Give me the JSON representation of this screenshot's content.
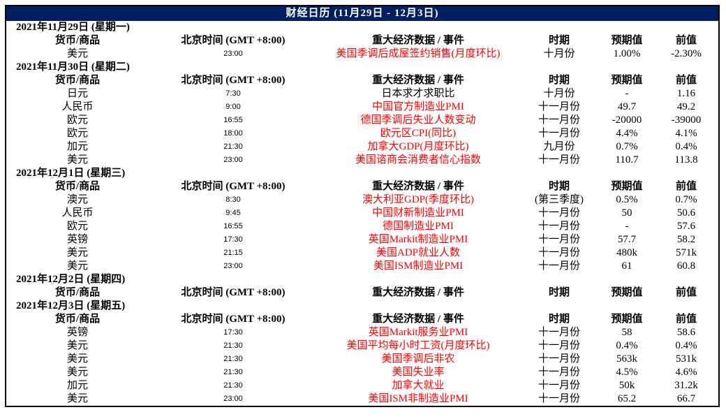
{
  "title": "财经日历 (11月29日 - 12月3日)",
  "colors": {
    "title_bar_bg": "#001f60",
    "title_text": "#ffffff",
    "event_highlight_red": "#fe0000",
    "body_text": "#000000",
    "border": "#000000",
    "background": "#ffffff"
  },
  "columns": [
    "货币/商品",
    "北京时间 (GMT +8:00)",
    "重大经济数据 / 事件",
    "时期",
    "预期值",
    "前值"
  ],
  "sections": [
    {
      "date": "2021年11月29日 (星期一)",
      "rows": [
        {
          "currency": "美元",
          "time": "23:00",
          "event": "美国季调后成屋签约销售(月度环比)",
          "event_color": "red",
          "period": "十月份",
          "forecast": "1.00%",
          "previous": "-2.30%"
        }
      ]
    },
    {
      "date": "2021年11月30日 (星期二)",
      "rows": [
        {
          "currency": "日元",
          "time": "7:30",
          "event": "日本求才求职比",
          "event_color": "black",
          "period": "十月份",
          "forecast": "-",
          "previous": "1.16"
        },
        {
          "currency": "人民币",
          "time": "9:00",
          "event": "中国官方制造业PMI",
          "event_color": "red",
          "period": "十一月份",
          "forecast": "49.7",
          "previous": "49.2"
        },
        {
          "currency": "欧元",
          "time": "16:55",
          "event": "德国季调后失业人数变动",
          "event_color": "red",
          "period": "十一月份",
          "forecast": "-20000",
          "previous": "-39000"
        },
        {
          "currency": "欧元",
          "time": "18:00",
          "event": "欧元区CPI(同比)",
          "event_color": "red",
          "period": "十一月份",
          "forecast": "4.4%",
          "previous": "4.1%"
        },
        {
          "currency": "加元",
          "time": "21:30",
          "event": "加拿大GDP(月度环比)",
          "event_color": "red",
          "period": "九月份",
          "forecast": "0.7%",
          "previous": "0.4%"
        },
        {
          "currency": "美元",
          "time": "23:00",
          "event": "美国谘商会消费者信心指数",
          "event_color": "red",
          "period": "十一月份",
          "forecast": "110.7",
          "previous": "113.8"
        }
      ]
    },
    {
      "date": "2021年12月1日 (星期三)",
      "rows": [
        {
          "currency": "澳元",
          "time": "8:30",
          "event": "澳大利亚GDP(季度环比)",
          "event_color": "red",
          "period": "(第三季度)",
          "forecast": "0.5%",
          "previous": "0.7%"
        },
        {
          "currency": "人民币",
          "time": "9:45",
          "event": "中国财新制造业PMI",
          "event_color": "red",
          "period": "十一月份",
          "forecast": "50",
          "previous": "50.6"
        },
        {
          "currency": "欧元",
          "time": "16:55",
          "event": "德国制造业PMI",
          "event_color": "red",
          "period": "十一月份",
          "forecast": "-",
          "previous": "57.6"
        },
        {
          "currency": "英镑",
          "time": "17:30",
          "event": "英国Markit制造业PMI",
          "event_color": "red",
          "period": "十一月份",
          "forecast": "57.7",
          "previous": "58.2"
        },
        {
          "currency": "美元",
          "time": "21:15",
          "event": "美国ADP就业人数",
          "event_color": "red",
          "period": "十一月份",
          "forecast": "480k",
          "previous": "571k"
        },
        {
          "currency": "美元",
          "time": "23:00",
          "event": "美国ISM制造业PMI",
          "event_color": "red",
          "period": "十一月份",
          "forecast": "61",
          "previous": "60.8"
        }
      ]
    },
    {
      "date": "2021年12月2日 (星期四)",
      "rows": []
    },
    {
      "date": "2021年12月3日 (星期五)",
      "rows": [
        {
          "currency": "英镑",
          "time": "17:30",
          "event": "英国Markit服务业PMI",
          "event_color": "red",
          "period": "十一月份",
          "forecast": "58",
          "previous": "58.6"
        },
        {
          "currency": "美元",
          "time": "21:30",
          "event": "美国平均每小时工资(月度环比)",
          "event_color": "red",
          "period": "十一月份",
          "forecast": "0.4%",
          "previous": "0.4%"
        },
        {
          "currency": "美元",
          "time": "21:30",
          "event": "美国季调后非农",
          "event_color": "red",
          "period": "十一月份",
          "forecast": "563k",
          "previous": "531k"
        },
        {
          "currency": "美元",
          "time": "21:30",
          "event": "美国失业率",
          "event_color": "red",
          "period": "十一月份",
          "forecast": "4.5%",
          "previous": "4.6%"
        },
        {
          "currency": "加元",
          "time": "21:30",
          "event": "加拿大就业",
          "event_color": "red",
          "period": "十一月份",
          "forecast": "50k",
          "previous": "31.2k"
        },
        {
          "currency": "美元",
          "time": "23:00",
          "event": "美国ISM非制造业PMI",
          "event_color": "red",
          "period": "十一月份",
          "forecast": "65.2",
          "previous": "66.7"
        }
      ]
    }
  ]
}
